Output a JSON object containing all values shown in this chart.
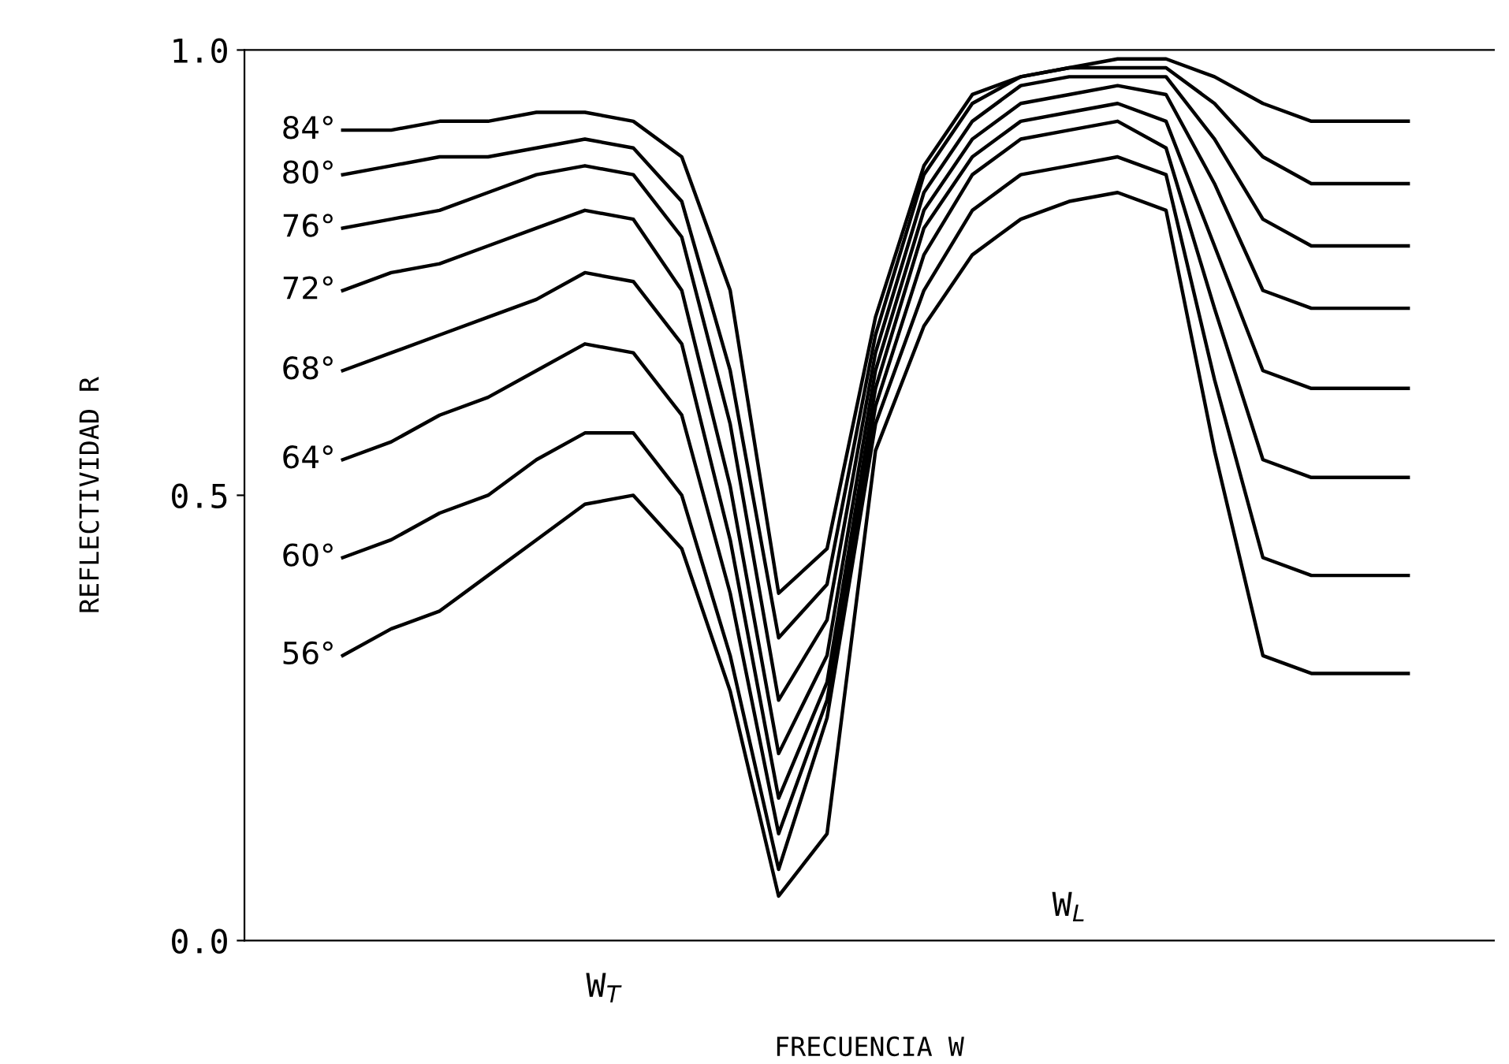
{
  "chart_data": {
    "type": "line",
    "xlabel": "FRECUENCIA W",
    "ylabel": "REFLECTIVIDAD R",
    "categories": [
      null,
      null,
      null,
      null,
      null,
      null,
      null,
      null,
      null,
      null,
      null,
      null,
      null,
      null,
      null,
      null,
      null,
      null,
      null,
      null,
      null,
      null,
      null
    ],
    "annotations": [
      "W$_{T}$",
      "W$_{L}$"
    ],
    "ylim": [
      0,
      1
    ],
    "yticks": [
      {
        "value": 0,
        "label": "0.0"
      },
      {
        "value": 0.5,
        "label": "0.5"
      },
      {
        "value": 1,
        "label": "1.0"
      }
    ],
    "grid": false,
    "legend": false,
    "marker": "none",
    "line_style": "solid",
    "series": [
      {
        "name": "84°",
        "color": "#000000",
        "values": [
          0.91,
          0.91,
          0.92,
          0.92,
          0.93,
          0.93,
          0.92,
          0.88,
          0.73,
          0.39,
          0.44,
          0.7,
          0.87,
          0.95,
          0.97,
          0.98,
          0.99,
          0.99,
          0.97,
          0.94,
          0.92,
          0.92,
          0.92
        ]
      },
      {
        "name": "80°",
        "color": "#000000",
        "values": [
          0.86,
          0.87,
          0.88,
          0.88,
          0.89,
          0.9,
          0.89,
          0.83,
          0.64,
          0.34,
          0.4,
          0.68,
          0.86,
          0.94,
          0.97,
          0.98,
          0.98,
          0.98,
          0.94,
          0.88,
          0.85,
          0.85,
          0.85
        ]
      },
      {
        "name": "76°",
        "color": "#000000",
        "values": [
          0.8,
          0.81,
          0.82,
          0.84,
          0.86,
          0.87,
          0.86,
          0.79,
          0.58,
          0.27,
          0.36,
          0.66,
          0.84,
          0.92,
          0.96,
          0.97,
          0.97,
          0.97,
          0.9,
          0.81,
          0.78,
          0.78,
          0.78
        ]
      },
      {
        "name": "72°",
        "color": "#000000",
        "values": [
          0.73,
          0.75,
          0.76,
          0.78,
          0.8,
          0.82,
          0.81,
          0.73,
          0.51,
          0.21,
          0.32,
          0.64,
          0.82,
          0.9,
          0.94,
          0.95,
          0.96,
          0.95,
          0.85,
          0.73,
          0.71,
          0.71,
          0.71
        ]
      },
      {
        "name": "68°",
        "color": "#000000",
        "values": [
          0.64,
          0.66,
          0.68,
          0.7,
          0.72,
          0.75,
          0.74,
          0.67,
          0.45,
          0.16,
          0.29,
          0.62,
          0.8,
          0.88,
          0.92,
          0.93,
          0.94,
          0.92,
          0.78,
          0.64,
          0.62,
          0.62,
          0.62
        ]
      },
      {
        "name": "64°",
        "color": "#000000",
        "values": [
          0.54,
          0.56,
          0.59,
          0.61,
          0.64,
          0.67,
          0.66,
          0.59,
          0.39,
          0.12,
          0.27,
          0.6,
          0.77,
          0.86,
          0.9,
          0.91,
          0.92,
          0.89,
          0.71,
          0.54,
          0.52,
          0.52,
          0.52
        ]
      },
      {
        "name": "60°",
        "color": "#000000",
        "values": [
          0.43,
          0.45,
          0.48,
          0.5,
          0.54,
          0.57,
          0.57,
          0.5,
          0.32,
          0.08,
          0.25,
          0.58,
          0.73,
          0.82,
          0.86,
          0.87,
          0.88,
          0.86,
          0.63,
          0.43,
          0.41,
          0.41,
          0.41
        ]
      },
      {
        "name": "56°",
        "color": "#000000",
        "values": [
          0.32,
          0.35,
          0.37,
          0.41,
          0.45,
          0.49,
          0.5,
          0.44,
          0.28,
          0.05,
          0.12,
          0.55,
          0.69,
          0.77,
          0.81,
          0.83,
          0.84,
          0.82,
          0.55,
          0.32,
          0.3,
          0.3,
          0.3
        ]
      }
    ]
  }
}
